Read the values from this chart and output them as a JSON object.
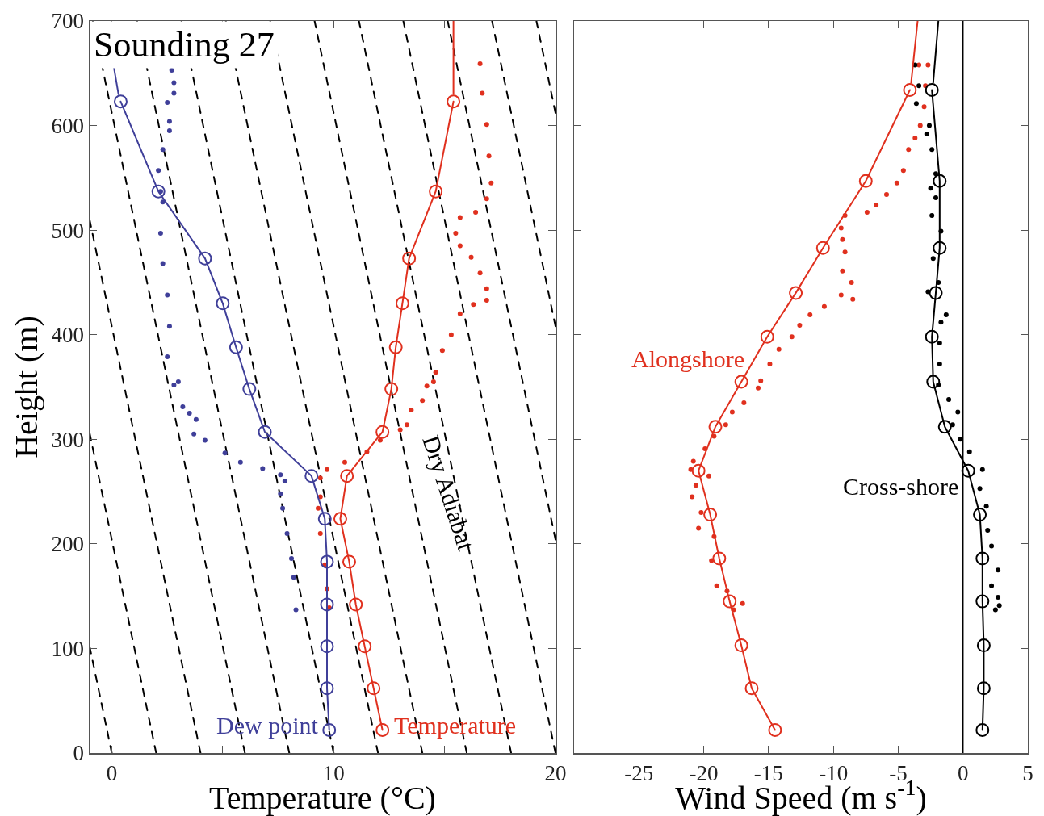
{
  "chart_data": [
    {
      "type": "line",
      "title": "Sounding 27",
      "xlabel": "Temperature (°C)",
      "ylabel": "Height (m)",
      "xlim": [
        -1,
        20
      ],
      "xticks": [
        0,
        {
          "value": 5,
          "label": null
        },
        10,
        {
          "value": 15,
          "label": null
        },
        20
      ],
      "ylim": [
        0,
        700
      ],
      "yticks": [
        0,
        100,
        200,
        300,
        400,
        500,
        600,
        700
      ],
      "annotations": [
        {
          "text": "Dew point",
          "x": 9.8,
          "y": 22
        },
        {
          "text": "Temperature",
          "x": 12.2,
          "y": 22
        },
        "Dry Adiabat"
      ],
      "series": [
        {
          "color": "#000000",
          "line_style": "dashed",
          "marker": "none",
          "x": [
            0,
            -1
          ],
          "values": [
            0,
            102
          ]
        },
        {
          "color": "#000000",
          "line_style": "dashed",
          "marker": "none",
          "x": [
            2,
            -1
          ],
          "values": [
            0,
            306
          ]
        },
        {
          "color": "#000000",
          "line_style": "dashed",
          "marker": "none",
          "x": [
            4,
            -1
          ],
          "values": [
            0,
            510
          ]
        },
        {
          "color": "#000000",
          "line_style": "dashed",
          "marker": "none",
          "x": [
            6,
            -0.86
          ],
          "values": [
            0,
            700
          ]
        },
        {
          "color": "#000000",
          "line_style": "dashed",
          "marker": "none",
          "x": [
            8,
            1.14
          ],
          "values": [
            0,
            700
          ]
        },
        {
          "color": "#000000",
          "line_style": "dashed",
          "marker": "none",
          "x": [
            10,
            3.14
          ],
          "values": [
            0,
            700
          ]
        },
        {
          "color": "#000000",
          "line_style": "dashed",
          "marker": "none",
          "x": [
            12,
            5.14
          ],
          "values": [
            0,
            700
          ]
        },
        {
          "color": "#000000",
          "line_style": "dashed",
          "marker": "none",
          "x": [
            14,
            7.14
          ],
          "values": [
            0,
            700
          ]
        },
        {
          "color": "#000000",
          "line_style": "dashed",
          "marker": "none",
          "x": [
            16,
            9.14
          ],
          "values": [
            0,
            700
          ]
        },
        {
          "color": "#000000",
          "line_style": "dashed",
          "marker": "none",
          "x": [
            18,
            11.14
          ],
          "values": [
            0,
            700
          ]
        },
        {
          "color": "#000000",
          "line_style": "dashed",
          "marker": "none",
          "x": [
            20,
            13.14
          ],
          "values": [
            0,
            700
          ]
        },
        {
          "color": "#000000",
          "line_style": "dashed",
          "marker": "none",
          "x": [
            20,
            15.14
          ],
          "values": [
            204,
            700
          ]
        },
        {
          "color": "#000000",
          "line_style": "dashed",
          "marker": "none",
          "x": [
            20,
            17.14
          ],
          "values": [
            408,
            700
          ]
        },
        {
          "color": "#000000",
          "line_style": "dashed",
          "marker": "none",
          "x": [
            20,
            19.14
          ],
          "values": [
            612,
            700
          ]
        },
        {
          "type": "scatter",
          "color": "#3f3f99",
          "marker": "circle",
          "x": [
            2.7,
            2.8,
            2.8,
            2.5,
            2.6,
            2.6,
            2.3,
            2.1,
            2.2,
            2.3,
            2.2,
            2.3,
            2.5,
            2.6,
            2.5,
            2.8,
            3.0,
            3.2,
            3.5,
            3.8,
            3.7,
            4.2,
            5.1,
            5.8,
            6.8,
            7.6,
            7.8,
            7.6,
            7.7,
            7.9,
            8.1,
            8.2,
            8.3
          ],
          "values": [
            653,
            641,
            631,
            622,
            604,
            595,
            577,
            557,
            537,
            527,
            497,
            468,
            438,
            408,
            379,
            352,
            355,
            331,
            325,
            319,
            305,
            299,
            287,
            278,
            272,
            266,
            260,
            248,
            234,
            210,
            186,
            168,
            137
          ]
        },
        {
          "type": "scatter",
          "color": "#e0301e",
          "marker": "circle",
          "x": [
            16.6,
            16.7,
            16.9,
            17.0,
            17.1,
            16.9,
            16.4,
            15.7,
            15.5,
            15.7,
            16.2,
            16.6,
            16.9,
            16.9,
            16.3,
            15.7,
            15.3,
            14.9,
            14.6,
            14.2,
            14.5,
            14.0,
            13.5,
            13.3,
            13.0,
            12.1,
            11.5,
            10.5,
            9.7,
            9.4,
            9.4,
            9.3,
            9.4,
            9.6,
            9.7,
            9.8
          ],
          "values": [
            659,
            631,
            601,
            571,
            545,
            530,
            517,
            512,
            497,
            485,
            474,
            459,
            444,
            433,
            429,
            420,
            400,
            385,
            364,
            351,
            355,
            337,
            328,
            314,
            309,
            299,
            288,
            278,
            271,
            263,
            245,
            234,
            210,
            180,
            157,
            139
          ]
        },
        {
          "color": "#3f3f99",
          "marker": "none",
          "x": [
            0.3,
            0.1
          ],
          "values": [
            630,
            655
          ]
        },
        {
          "color": "#e0301e",
          "marker": "none",
          "x": [
            15.4,
            15.4
          ],
          "values": [
            630,
            700
          ]
        },
        {
          "color": "#3f3f99",
          "marker": "circle",
          "x": [
            9.8,
            9.7,
            9.7,
            9.7,
            9.7,
            9.6,
            9.0,
            6.9,
            6.2,
            5.6,
            5.0,
            4.2,
            2.1,
            0.4
          ],
          "values": [
            22,
            62,
            102,
            142,
            183,
            224,
            265,
            307,
            348,
            388,
            430,
            473,
            537,
            623
          ]
        },
        {
          "color": "#e0301e",
          "marker": "circle",
          "x": [
            12.2,
            11.8,
            11.4,
            11.0,
            10.7,
            10.3,
            10.6,
            12.2,
            12.6,
            12.8,
            13.1,
            13.4,
            14.6,
            15.4
          ],
          "values": [
            22,
            62,
            102,
            142,
            183,
            224,
            265,
            307,
            348,
            388,
            430,
            473,
            537,
            623
          ]
        }
      ]
    },
    {
      "type": "line",
      "xlabel": "Wind Speed (m s$^{-1}$)",
      "xlim": [
        -30,
        5
      ],
      "xticks": [
        -25,
        -20,
        -15,
        -10,
        -5,
        0,
        5
      ],
      "ylim": [
        0,
        700
      ],
      "yticks": [
        0,
        100,
        200,
        300,
        400,
        500,
        600,
        700
      ],
      "tick_labels": "x",
      "ref_lines": [
        {
          "axis": "x",
          "value": 0,
          "color": "#000000"
        }
      ],
      "annotations": [
        {
          "text": "Alongshore",
          "x": -16.1,
          "y": 377
        },
        {
          "text": "Cross-shore",
          "x": 0,
          "y": 255
        }
      ],
      "series": [
        {
          "type": "scatter",
          "color": "#e0301e",
          "marker": "circle",
          "x": [
            -2.7,
            -3.4,
            -2.9,
            -3.0,
            -3.3,
            -3.7,
            -4.2,
            -4.6,
            -5.1,
            -5.9,
            -6.7,
            -7.4,
            -9.1,
            -9.4,
            -9.3,
            -9.1,
            -9.3,
            -8.6,
            -8.5,
            -9.4,
            -10.7,
            -11.8,
            -12.6,
            -13.2,
            -14.2,
            -14.9,
            -15.6,
            -15.8,
            -16.9,
            -17.8,
            -18.3,
            -19.2,
            -19.9,
            -20.8,
            -21.0,
            -19.6,
            -20.6,
            -20.9,
            -20.2,
            -20.4,
            -19.2,
            -19.4,
            -19.0,
            -18.2,
            -17.0,
            -17.7
          ],
          "values": [
            658,
            658,
            638,
            618,
            600,
            588,
            577,
            557,
            545,
            534,
            524,
            517,
            514,
            502,
            491,
            479,
            461,
            450,
            434,
            438,
            427,
            419,
            409,
            398,
            386,
            372,
            356,
            349,
            335,
            326,
            314,
            303,
            291,
            279,
            271,
            265,
            256,
            245,
            230,
            215,
            207,
            184,
            160,
            155,
            143,
            137
          ]
        },
        {
          "type": "scatter",
          "color": "#000000",
          "marker": "circle",
          "x": [
            -3.7,
            -3.4,
            -3.6,
            -2.6,
            -2.8,
            -2.4,
            -2.1,
            -2.5,
            -2.1,
            -2.4,
            -1.7,
            -2.3,
            -1.9,
            -2.7,
            -1.3,
            -1.7,
            -1.8,
            -1.8,
            -1.9,
            -1.1,
            -0.4,
            -0.8,
            -0.2,
            0.5,
            1.5,
            1.3,
            1.8,
            1.9,
            2.2,
            2.7,
            2.2,
            2.7,
            2.8,
            2.5
          ],
          "values": [
            658,
            638,
            621,
            600,
            592,
            577,
            554,
            540,
            531,
            514,
            499,
            473,
            450,
            441,
            419,
            412,
            392,
            372,
            352,
            338,
            326,
            314,
            300,
            288,
            271,
            253,
            236,
            213,
            198,
            175,
            160,
            149,
            141,
            137
          ]
        },
        {
          "color": "#e0301e",
          "marker": "none",
          "x": [
            -4.0,
            -3.5
          ],
          "values": [
            641,
            700
          ]
        },
        {
          "color": "#000000",
          "marker": "none",
          "x": [
            -2.3,
            -1.9
          ],
          "values": [
            641,
            700
          ]
        },
        {
          "color": "#e0301e",
          "marker": "circle",
          "x": [
            -14.5,
            -16.3,
            -17.1,
            -18.0,
            -18.8,
            -19.5,
            -20.4,
            -19.1,
            -17.1,
            -15.1,
            -12.9,
            -10.8,
            -7.5,
            -4.1
          ],
          "values": [
            22,
            62,
            103,
            145,
            186,
            228,
            270,
            312,
            355,
            398,
            440,
            483,
            547,
            634
          ]
        },
        {
          "color": "#000000",
          "marker": "circle",
          "x": [
            1.5,
            1.6,
            1.6,
            1.5,
            1.5,
            1.3,
            0.4,
            -1.4,
            -2.3,
            -2.4,
            -2.1,
            -1.8,
            -1.8,
            -2.4
          ],
          "values": [
            22,
            62,
            103,
            145,
            186,
            228,
            270,
            312,
            355,
            398,
            440,
            483,
            547,
            634
          ]
        }
      ]
    }
  ]
}
